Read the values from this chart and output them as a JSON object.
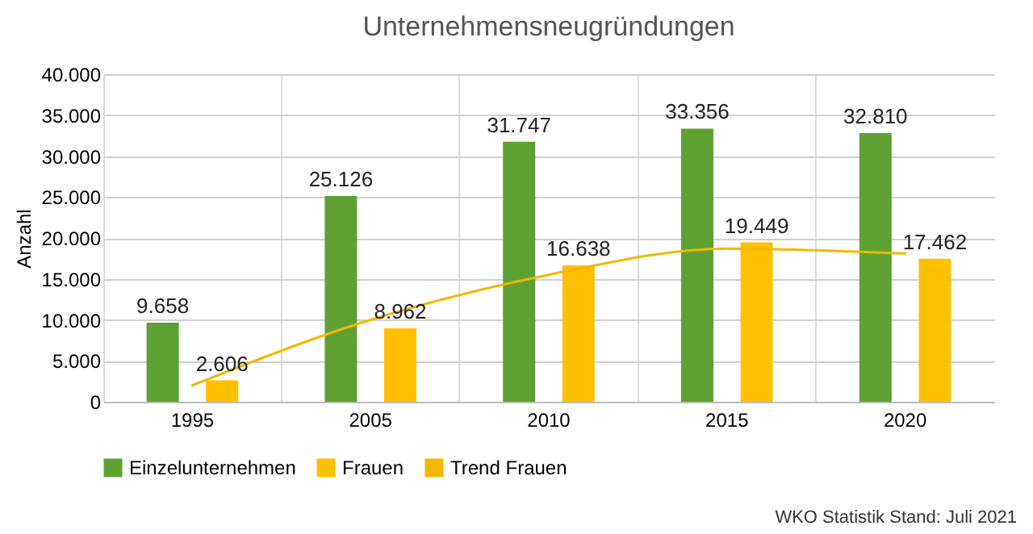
{
  "chart_data": {
    "type": "bar",
    "title": "Unternehmensneugründungen",
    "ylabel": "Anzahl",
    "categories": [
      "1995",
      "2005",
      "2010",
      "2015",
      "2020"
    ],
    "series": [
      {
        "name": "Einzelunternehmen",
        "color": "#5ea132",
        "values": [
          9658,
          25126,
          31747,
          33356,
          32810
        ],
        "value_labels": [
          "9.658",
          "25.126",
          "31.747",
          "33.356",
          "32.810"
        ]
      },
      {
        "name": "Frauen",
        "color": "#ffc000",
        "values": [
          2606,
          8962,
          16638,
          19449,
          17462
        ],
        "value_labels": [
          "2.606",
          "8.962",
          "16.638",
          "19.449",
          "17.462"
        ]
      },
      {
        "name": "Trend Frauen",
        "type": "line",
        "color": "#f2b800",
        "values": [
          2000,
          10000,
          15500,
          18700,
          18100
        ]
      }
    ],
    "ylim": [
      0,
      40000
    ],
    "yticks": [
      {
        "value": 0,
        "label": "0"
      },
      {
        "value": 5000,
        "label": "5.000"
      },
      {
        "value": 10000,
        "label": "10.000"
      },
      {
        "value": 15000,
        "label": "15.000"
      },
      {
        "value": 20000,
        "label": "20.000"
      },
      {
        "value": 25000,
        "label": "25.000"
      },
      {
        "value": 30000,
        "label": "30.000"
      },
      {
        "value": 35000,
        "label": "35.000"
      },
      {
        "value": 40000,
        "label": "40.000"
      }
    ],
    "grid": true,
    "legend": "bottom",
    "annotations": [
      "WKO Statistik Stand: Juli 2021"
    ]
  }
}
